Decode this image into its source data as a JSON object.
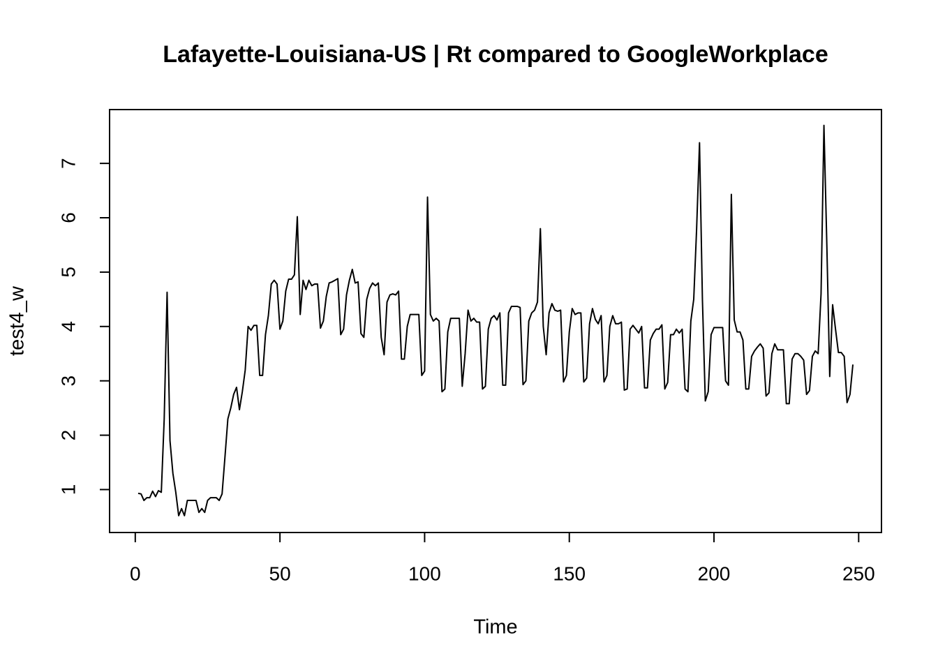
{
  "chart_data": {
    "type": "line",
    "title": "Lafayette-Louisiana-US | Rt compared to GoogleWorkplace",
    "x_label": "Time",
    "y_label": "test4_w",
    "x": [
      1,
      2,
      3,
      4,
      5,
      6,
      7,
      8,
      9,
      10,
      11,
      12,
      13,
      14,
      15,
      16,
      17,
      18,
      19,
      20,
      21,
      22,
      23,
      24,
      25,
      26,
      27,
      28,
      29,
      30,
      31,
      32,
      33,
      34,
      35,
      36,
      37,
      38,
      39,
      40,
      41,
      42,
      43,
      44,
      45,
      46,
      47,
      48,
      49,
      50,
      51,
      52,
      53,
      54,
      55,
      56,
      57,
      58,
      59,
      60,
      61,
      62,
      63,
      64,
      65,
      66,
      67,
      68,
      69,
      70,
      71,
      72,
      73,
      74,
      75,
      76,
      77,
      78,
      79,
      80,
      81,
      82,
      83,
      84,
      85,
      86,
      87,
      88,
      89,
      90,
      91,
      92,
      93,
      94,
      95,
      96,
      97,
      98,
      99,
      100,
      101,
      102,
      103,
      104,
      105,
      106,
      107,
      108,
      109,
      110,
      111,
      112,
      113,
      114,
      115,
      116,
      117,
      118,
      119,
      120,
      121,
      122,
      123,
      124,
      125,
      126,
      127,
      128,
      129,
      130,
      131,
      132,
      133,
      134,
      135,
      136,
      137,
      138,
      139,
      140,
      141,
      142,
      143,
      144,
      145,
      146,
      147,
      148,
      149,
      150,
      151,
      152,
      153,
      154,
      155,
      156,
      157,
      158,
      159,
      160,
      161,
      162,
      163,
      164,
      165,
      166,
      167,
      168,
      169,
      170,
      171,
      172,
      173,
      174,
      175,
      176,
      177,
      178,
      179,
      180,
      181,
      182,
      183,
      184,
      185,
      186,
      187,
      188,
      189,
      190,
      191,
      192,
      193,
      194,
      195,
      196,
      197,
      198,
      199,
      200,
      201,
      202,
      203,
      204,
      205,
      206,
      207,
      208,
      209,
      210,
      211,
      212,
      213,
      214,
      215,
      216,
      217,
      218,
      219,
      220,
      221,
      222,
      223,
      224,
      225,
      226,
      227,
      228,
      229,
      230,
      231,
      232,
      233,
      234,
      235,
      236,
      237,
      238,
      239,
      240,
      241,
      242,
      243,
      244,
      245,
      246,
      247,
      248
    ],
    "series": [
      {
        "color": "#000000",
        "values": [
          0.93,
          0.92,
          0.8,
          0.85,
          0.85,
          0.97,
          0.87,
          0.98,
          0.95,
          2.3,
          4.63,
          1.9,
          1.3,
          0.95,
          0.52,
          0.65,
          0.52,
          0.8,
          0.8,
          0.8,
          0.8,
          0.58,
          0.65,
          0.58,
          0.8,
          0.85,
          0.85,
          0.85,
          0.8,
          0.92,
          1.6,
          2.3,
          2.5,
          2.75,
          2.88,
          2.47,
          2.8,
          3.2,
          4.0,
          3.93,
          4.02,
          4.02,
          3.1,
          3.1,
          3.85,
          4.2,
          4.78,
          4.85,
          4.78,
          3.95,
          4.1,
          4.65,
          4.87,
          4.87,
          4.95,
          6.02,
          4.22,
          4.85,
          4.68,
          4.85,
          4.75,
          4.78,
          4.78,
          3.97,
          4.1,
          4.55,
          4.8,
          4.82,
          4.85,
          4.88,
          3.85,
          3.95,
          4.58,
          4.85,
          5.05,
          4.8,
          4.82,
          3.87,
          3.8,
          4.5,
          4.7,
          4.8,
          4.75,
          4.8,
          3.8,
          3.48,
          4.45,
          4.58,
          4.6,
          4.58,
          4.65,
          3.4,
          3.4,
          4.0,
          4.22,
          4.22,
          4.22,
          4.22,
          3.1,
          3.18,
          6.38,
          4.22,
          4.1,
          4.15,
          4.1,
          2.8,
          2.85,
          3.9,
          4.15,
          4.15,
          4.15,
          4.15,
          2.9,
          3.5,
          4.3,
          4.1,
          4.15,
          4.08,
          4.08,
          2.85,
          2.9,
          3.95,
          4.15,
          4.2,
          4.12,
          4.25,
          2.92,
          2.92,
          4.25,
          4.37,
          4.37,
          4.37,
          4.35,
          2.93,
          3.0,
          4.1,
          4.25,
          4.3,
          4.45,
          5.8,
          4.0,
          3.48,
          4.25,
          4.42,
          4.3,
          4.28,
          4.3,
          2.98,
          3.1,
          3.9,
          4.33,
          4.22,
          4.25,
          4.25,
          2.98,
          3.05,
          4.05,
          4.33,
          4.13,
          4.05,
          4.2,
          2.98,
          3.1,
          4.0,
          4.2,
          4.05,
          4.05,
          4.08,
          2.83,
          2.85,
          3.95,
          4.02,
          3.95,
          3.88,
          4.0,
          2.87,
          2.87,
          3.75,
          3.87,
          3.95,
          3.95,
          4.03,
          2.85,
          2.97,
          3.85,
          3.85,
          3.95,
          3.88,
          3.95,
          2.85,
          2.8,
          4.1,
          4.5,
          5.8,
          7.38,
          4.5,
          2.63,
          2.8,
          3.85,
          3.98,
          3.98,
          3.98,
          3.98,
          3.0,
          2.92,
          6.43,
          4.12,
          3.9,
          3.9,
          3.75,
          2.85,
          2.85,
          3.45,
          3.55,
          3.62,
          3.68,
          3.6,
          2.72,
          2.78,
          3.5,
          3.68,
          3.57,
          3.57,
          3.57,
          2.58,
          2.58,
          3.4,
          3.5,
          3.5,
          3.45,
          3.38,
          2.75,
          2.82,
          3.45,
          3.55,
          3.5,
          4.6,
          7.7,
          5.5,
          3.08,
          4.4,
          3.95,
          3.52,
          3.52,
          3.45,
          2.6,
          2.75,
          3.3
        ]
      }
    ],
    "xlim": [
      -8.88,
      257.88
    ],
    "xticks": [
      0,
      50,
      100,
      150,
      200,
      250
    ],
    "ylim": [
      0.21,
      7.99
    ],
    "yticks": [
      1,
      2,
      3,
      4,
      5,
      6,
      7
    ]
  }
}
